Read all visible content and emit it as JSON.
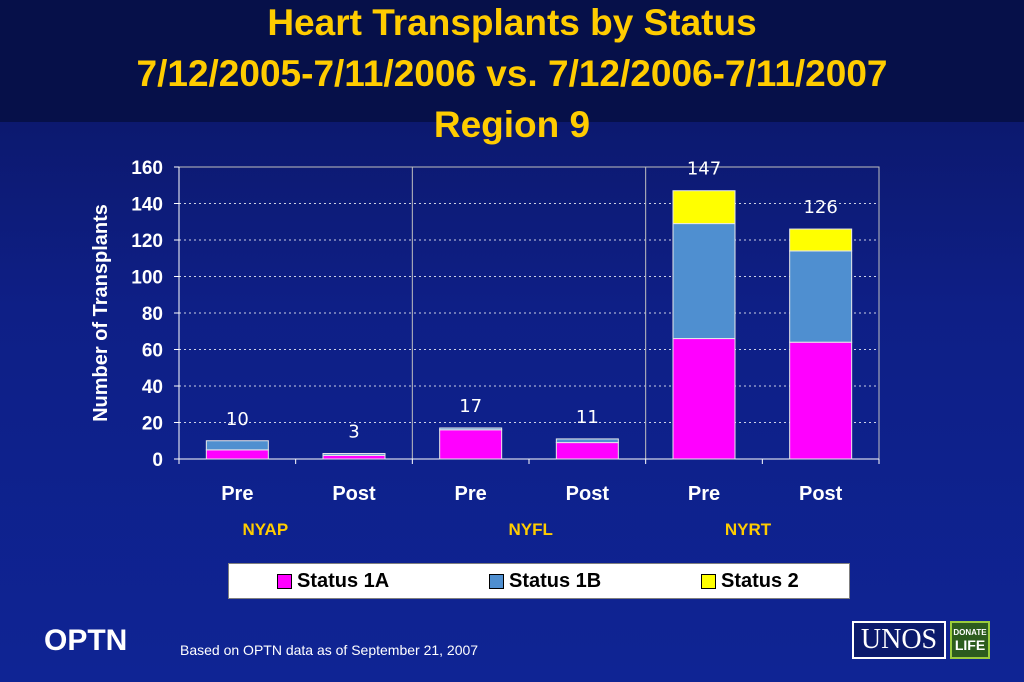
{
  "slide": {
    "title_lines": [
      "Heart Transplants by Status",
      "7/12/2005-7/11/2006 vs. 7/12/2006-7/11/2007",
      "Region 9"
    ],
    "footer_org": "OPTN",
    "footer_source": "Based on OPTN data as of  September 21, 2007",
    "logo_text": "UNOS",
    "logo_badge_top": "DONATE",
    "logo_badge_bottom": "LIFE"
  },
  "chart_data": {
    "type": "bar",
    "stacked": true,
    "ylabel": "Number of Transplants",
    "ylim": [
      0,
      160
    ],
    "yticks": [
      0,
      20,
      40,
      60,
      80,
      100,
      120,
      140,
      160
    ],
    "categories": [
      "Pre",
      "Post",
      "Pre",
      "Post",
      "Pre",
      "Post"
    ],
    "groups": [
      {
        "label": "NYAP",
        "start": 0,
        "end": 1
      },
      {
        "label": "NYFL",
        "start": 2,
        "end": 3
      },
      {
        "label": "NYRT",
        "start": 4,
        "end": 5
      }
    ],
    "series": [
      {
        "name": "Status 1A",
        "color": "#ff00ff",
        "values": [
          5,
          2,
          16,
          9,
          66,
          64
        ]
      },
      {
        "name": "Status 1B",
        "color": "#4f8fd0",
        "values": [
          5,
          1,
          1,
          2,
          63,
          50
        ]
      },
      {
        "name": "Status 2",
        "color": "#ffff00",
        "values": [
          0,
          0,
          0,
          0,
          18,
          12
        ]
      }
    ],
    "totals": [
      10,
      3,
      17,
      11,
      147,
      126
    ],
    "grid": true,
    "legend_position": "bottom",
    "colors": {
      "axis_text": "#ffffff",
      "group_text": "#ffcc00",
      "grid": "#ffffff"
    }
  }
}
